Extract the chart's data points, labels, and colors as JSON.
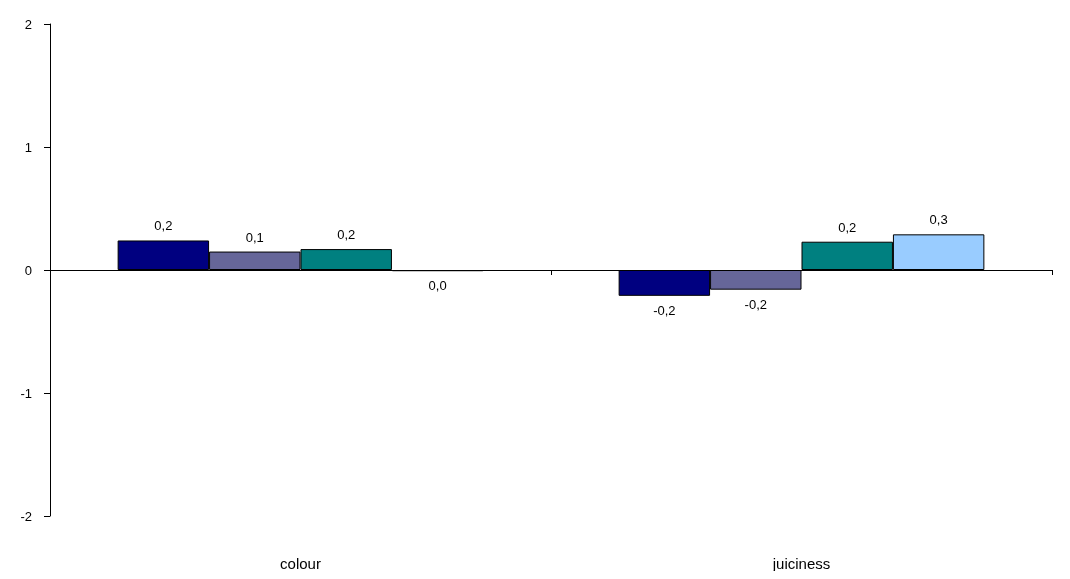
{
  "chart_data": {
    "type": "bar",
    "categories": [
      "colour",
      "juiciness"
    ],
    "series": [
      {
        "color": "#000080",
        "values": [
          0.24,
          -0.21
        ],
        "value_labels": [
          "0,2",
          "-0,2"
        ]
      },
      {
        "color": "#666699",
        "values": [
          0.15,
          -0.16
        ],
        "value_labels": [
          "0,1",
          "-0,2"
        ]
      },
      {
        "color": "#008080",
        "values": [
          0.17,
          0.23
        ],
        "value_labels": [
          "0,2",
          "0,2"
        ]
      },
      {
        "color": "#99ccff",
        "values": [
          -0.01,
          0.29
        ],
        "value_labels": [
          "0,0",
          "0,3"
        ]
      }
    ],
    "ylim": [
      -2,
      2
    ],
    "yticks": [
      -2,
      -1,
      0,
      1,
      2
    ]
  }
}
